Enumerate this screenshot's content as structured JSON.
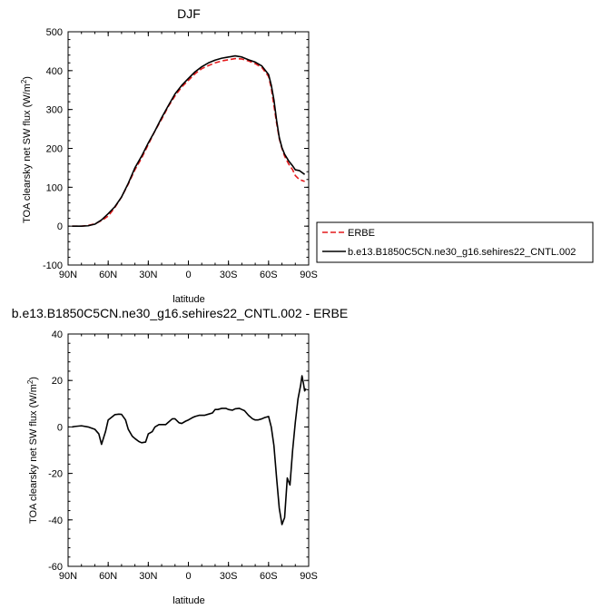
{
  "chart_data": [
    {
      "type": "line",
      "title": "DJF",
      "xlabel": "latitude",
      "ylabel": "TOA clearsky net SW flux (W/m²)",
      "xlim": [
        90,
        -90
      ],
      "ylim": [
        -100,
        500
      ],
      "xticks": [
        {
          "value": 90,
          "label": "90N"
        },
        {
          "value": 60,
          "label": "60N"
        },
        {
          "value": 30,
          "label": "30N"
        },
        {
          "value": 0,
          "label": "0"
        },
        {
          "value": -30,
          "label": "30S"
        },
        {
          "value": -60,
          "label": "60S"
        },
        {
          "value": -90,
          "label": "90S"
        }
      ],
      "yticks": [
        -100,
        0,
        100,
        200,
        300,
        400,
        500
      ],
      "legend_position": "right",
      "series": [
        {
          "name": "ERBE",
          "color": "#e41a1c",
          "dash": "dashed",
          "x": [
            87,
            80,
            75,
            70,
            65,
            60,
            55,
            50,
            45,
            40,
            35,
            30,
            25,
            20,
            15,
            10,
            5,
            0,
            -5,
            -10,
            -15,
            -20,
            -25,
            -30,
            -35,
            -40,
            -45,
            -50,
            -55,
            -60,
            -62,
            -64,
            -66,
            -68,
            -70,
            -72,
            -75,
            -78,
            -80,
            -83,
            -87
          ],
          "values": [
            0,
            0,
            2,
            6,
            14,
            26,
            48,
            75,
            108,
            145,
            175,
            210,
            245,
            275,
            308,
            335,
            358,
            375,
            392,
            405,
            413,
            420,
            425,
            428,
            431,
            430,
            425,
            418,
            408,
            385,
            355,
            310,
            265,
            225,
            200,
            180,
            160,
            145,
            130,
            120,
            115
          ]
        },
        {
          "name": "b.e13.B1850C5CN.ne30_g16.sehires22_CNTL.002",
          "color": "#000000",
          "dash": "solid",
          "x": [
            87,
            80,
            75,
            70,
            65,
            60,
            55,
            50,
            45,
            40,
            35,
            30,
            25,
            20,
            15,
            10,
            5,
            0,
            -5,
            -10,
            -15,
            -20,
            -25,
            -30,
            -35,
            -40,
            -45,
            -50,
            -55,
            -60,
            -62,
            -64,
            -66,
            -68,
            -70,
            -72,
            -75,
            -78,
            -80,
            -83,
            -87
          ],
          "values": [
            0,
            0,
            1,
            5,
            16,
            32,
            50,
            75,
            110,
            150,
            180,
            214,
            245,
            279,
            310,
            340,
            362,
            380,
            397,
            410,
            420,
            427,
            432,
            435,
            438,
            435,
            428,
            422,
            412,
            390,
            363,
            325,
            272,
            228,
            202,
            185,
            168,
            155,
            145,
            143,
            133
          ]
        }
      ]
    },
    {
      "type": "line",
      "title": "b.e13.B1850C5CN.ne30_g16.sehires22_CNTL.002 - ERBE",
      "xlabel": "latitude",
      "ylabel": "TOA clearsky net SW flux (W/m²)",
      "xlim": [
        90,
        -90
      ],
      "ylim": [
        -60,
        40
      ],
      "xticks": [
        {
          "value": 90,
          "label": "90N"
        },
        {
          "value": 60,
          "label": "60N"
        },
        {
          "value": 30,
          "label": "30N"
        },
        {
          "value": 0,
          "label": "0"
        },
        {
          "value": -30,
          "label": "30S"
        },
        {
          "value": -60,
          "label": "60S"
        },
        {
          "value": -90,
          "label": "90S"
        }
      ],
      "yticks": [
        -60,
        -40,
        -20,
        0,
        20,
        40
      ],
      "series": [
        {
          "color": "#000000",
          "dash": "solid",
          "x": [
            87,
            85,
            80,
            75,
            70,
            67,
            65,
            62,
            60,
            55,
            52,
            50,
            47,
            45,
            42,
            40,
            37,
            35,
            32,
            30,
            27,
            25,
            22,
            20,
            17,
            15,
            12,
            10,
            7,
            5,
            2,
            0,
            -3,
            -5,
            -8,
            -10,
            -12,
            -15,
            -18,
            -20,
            -22,
            -25,
            -28,
            -30,
            -33,
            -35,
            -38,
            -40,
            -42,
            -45,
            -48,
            -50,
            -52,
            -55,
            -57,
            -60,
            -62,
            -64,
            -66,
            -68,
            -70,
            -72,
            -74,
            -76,
            -78,
            -80,
            -82,
            -84,
            -85,
            -86,
            -87,
            -88
          ],
          "values": [
            0,
            0.2,
            0.5,
            0,
            -1,
            -3,
            -7.5,
            -2,
            3,
            5.3,
            5.5,
            5.4,
            3,
            -1,
            -4,
            -5,
            -6.3,
            -6.8,
            -6.5,
            -3,
            -2,
            0,
            1,
            1,
            1,
            2,
            3.5,
            3.5,
            1.8,
            1.5,
            2.5,
            3,
            4,
            4.5,
            5,
            5,
            5,
            5.5,
            6,
            7.5,
            7.5,
            8,
            8,
            7.5,
            7.2,
            7.8,
            8,
            7.5,
            7,
            5,
            3.5,
            3,
            3,
            3.5,
            4,
            4.5,
            0,
            -8,
            -22,
            -35,
            -42,
            -39,
            -22,
            -25,
            -10,
            2,
            12,
            18,
            22,
            19,
            15.5,
            16.5
          ]
        }
      ]
    }
  ],
  "legend": {
    "items": [
      {
        "label": "ERBE",
        "color": "#e41a1c",
        "dash": "dashed"
      },
      {
        "label": "b.e13.B1850C5CN.ne30_g16.sehires22_CNTL.002",
        "color": "#000000",
        "dash": "solid"
      }
    ]
  }
}
